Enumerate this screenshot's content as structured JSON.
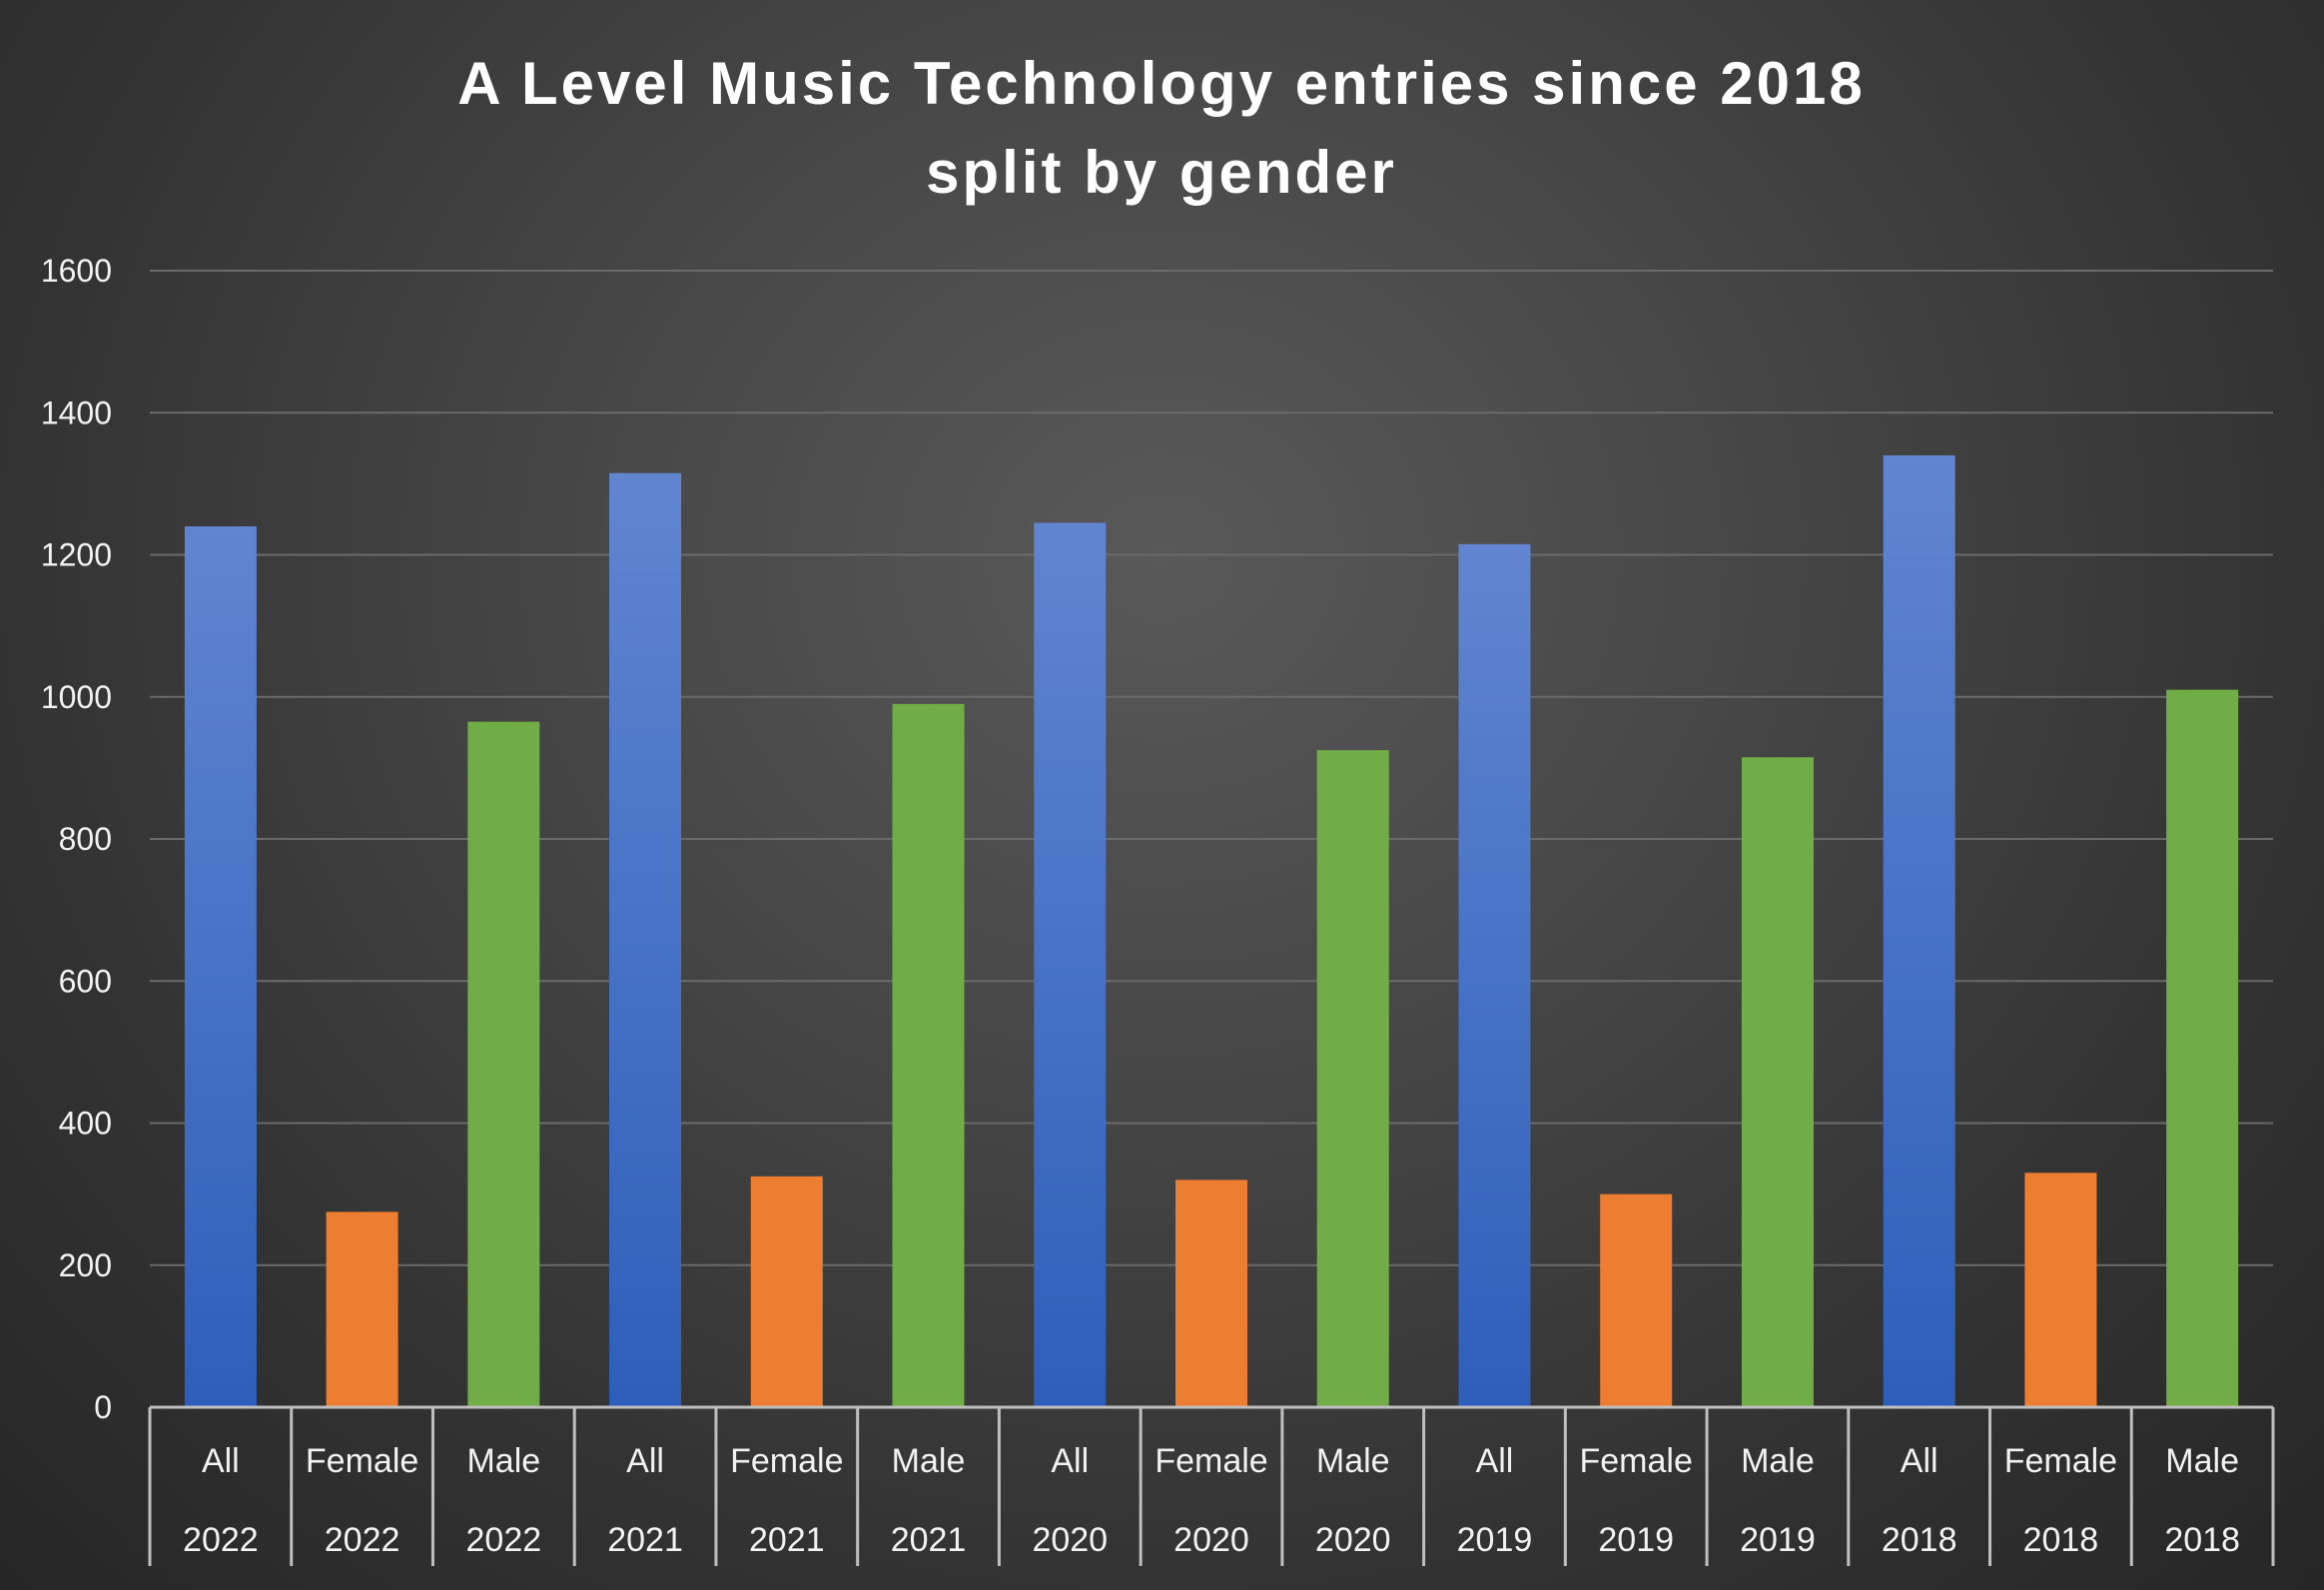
{
  "chart_data": {
    "type": "bar",
    "title_lines": [
      "A Level Music Technology entries since 2018",
      "split by gender"
    ],
    "ylim": [
      0,
      1600
    ],
    "y_ticks": [
      "0",
      "200",
      "400",
      "600",
      "800",
      "1000",
      "1200",
      "1400",
      "1600"
    ],
    "grid": true,
    "categories": [
      {
        "label": "All",
        "year": "2022",
        "value": 1240,
        "group": "All"
      },
      {
        "label": "Female",
        "year": "2022",
        "value": 275,
        "group": "Female"
      },
      {
        "label": "Male",
        "year": "2022",
        "value": 965,
        "group": "Male"
      },
      {
        "label": "All",
        "year": "2021",
        "value": 1315,
        "group": "All"
      },
      {
        "label": "Female",
        "year": "2021",
        "value": 325,
        "group": "Female"
      },
      {
        "label": "Male",
        "year": "2021",
        "value": 990,
        "group": "Male"
      },
      {
        "label": "All",
        "year": "2020",
        "value": 1245,
        "group": "All"
      },
      {
        "label": "Female",
        "year": "2020",
        "value": 320,
        "group": "Female"
      },
      {
        "label": "Male",
        "year": "2020",
        "value": 925,
        "group": "Male"
      },
      {
        "label": "All",
        "year": "2019",
        "value": 1215,
        "group": "All"
      },
      {
        "label": "Female",
        "year": "2019",
        "value": 300,
        "group": "Female"
      },
      {
        "label": "Male",
        "year": "2019",
        "value": 915,
        "group": "Male"
      },
      {
        "label": "All",
        "year": "2018",
        "value": 1340,
        "group": "All"
      },
      {
        "label": "Female",
        "year": "2018",
        "value": 330,
        "group": "Female"
      },
      {
        "label": "Male",
        "year": "2018",
        "value": 1010,
        "group": "Male"
      }
    ],
    "colors": {
      "All_top": "#6185d0",
      "All_bottom": "#2d5fba",
      "Female": "#ed7d31",
      "Male": "#70ad47",
      "grid": "#6a6a6a",
      "axis": "#bfbfbf"
    }
  }
}
